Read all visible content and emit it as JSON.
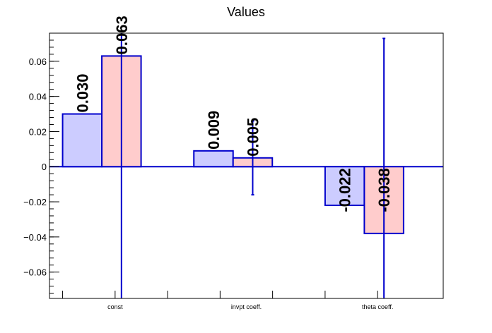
{
  "chart_data": {
    "type": "bar",
    "title": "Values",
    "xlabel": "",
    "ylabel": "",
    "categories": [
      "const",
      "invpt coeff.",
      "theta coeff."
    ],
    "ylim": [
      -0.075,
      0.076
    ],
    "yticks": [
      -0.06,
      -0.04,
      -0.02,
      0,
      0.02,
      0.04,
      0.06
    ],
    "ytick_labels": [
      "−0.06",
      "−0.04",
      "−0.02",
      "0",
      "0.02",
      "0.04",
      "0.06"
    ],
    "grid": false,
    "legend": "none",
    "series": [
      {
        "values": [
          0.03,
          0.009,
          -0.022
        ],
        "labels": [
          "0.030",
          "0.009",
          "-0.022"
        ],
        "error_low": [
          null,
          null,
          null
        ],
        "error_high": [
          null,
          null,
          null
        ],
        "fill": "#ccccff",
        "edge": "#0000cc"
      },
      {
        "values": [
          0.063,
          0.005,
          -0.038
        ],
        "labels": [
          "0.063",
          "0.005",
          "-0.038"
        ],
        "error_low": [
          -0.075,
          -0.016,
          -0.075
        ],
        "error_high": [
          0.076,
          0.026,
          0.073
        ],
        "fill": "#ffcccc",
        "edge": "#0000cc"
      }
    ]
  }
}
